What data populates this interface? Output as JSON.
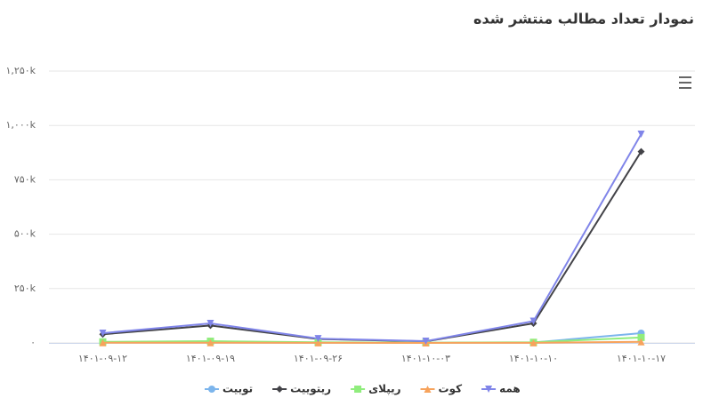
{
  "chart_data": {
    "type": "line",
    "title": "نمودار تعداد مطالب منتشر شده",
    "categories": [
      "۱۴۰۱-۰۹-۱۲",
      "۱۴۰۱-۰۹-۱۹",
      "۱۴۰۱-۰۹-۲۶",
      "۱۴۰۱-۱۰-۰۳",
      "۱۴۰۱-۱۰-۱۰",
      "۱۴۰۱-۱۰-۱۷"
    ],
    "series": [
      {
        "name": "توییت",
        "color": "#7cb5ec",
        "marker": "circle",
        "values": [
          2000,
          3000,
          1000,
          500,
          2000,
          45000
        ]
      },
      {
        "name": "ریتوییت",
        "color": "#434348",
        "marker": "diamond",
        "values": [
          40000,
          80000,
          18000,
          7000,
          90000,
          880000
        ]
      },
      {
        "name": "ریپلای",
        "color": "#90ed7d",
        "marker": "square",
        "values": [
          5000,
          8000,
          3000,
          1000,
          3000,
          25000
        ]
      },
      {
        "name": "کوت",
        "color": "#f7a35c",
        "marker": "triangle",
        "values": [
          1000,
          1000,
          500,
          200,
          500,
          5000
        ]
      },
      {
        "name": "همه",
        "color": "#8085e9",
        "marker": "triangle-down",
        "values": [
          45000,
          90000,
          20000,
          8000,
          100000,
          960000
        ]
      }
    ],
    "ylim": [
      0,
      1250000
    ],
    "yticks": [
      {
        "value": 0,
        "label": "۰"
      },
      {
        "value": 250000,
        "label": "۲۵۰k"
      },
      {
        "value": 500000,
        "label": "۵۰۰k"
      },
      {
        "value": 750000,
        "label": "۷۵۰k"
      },
      {
        "value": 1000000,
        "label": "۱,۰۰۰k"
      },
      {
        "value": 1250000,
        "label": "۱,۲۵۰k"
      }
    ],
    "grid": true
  }
}
